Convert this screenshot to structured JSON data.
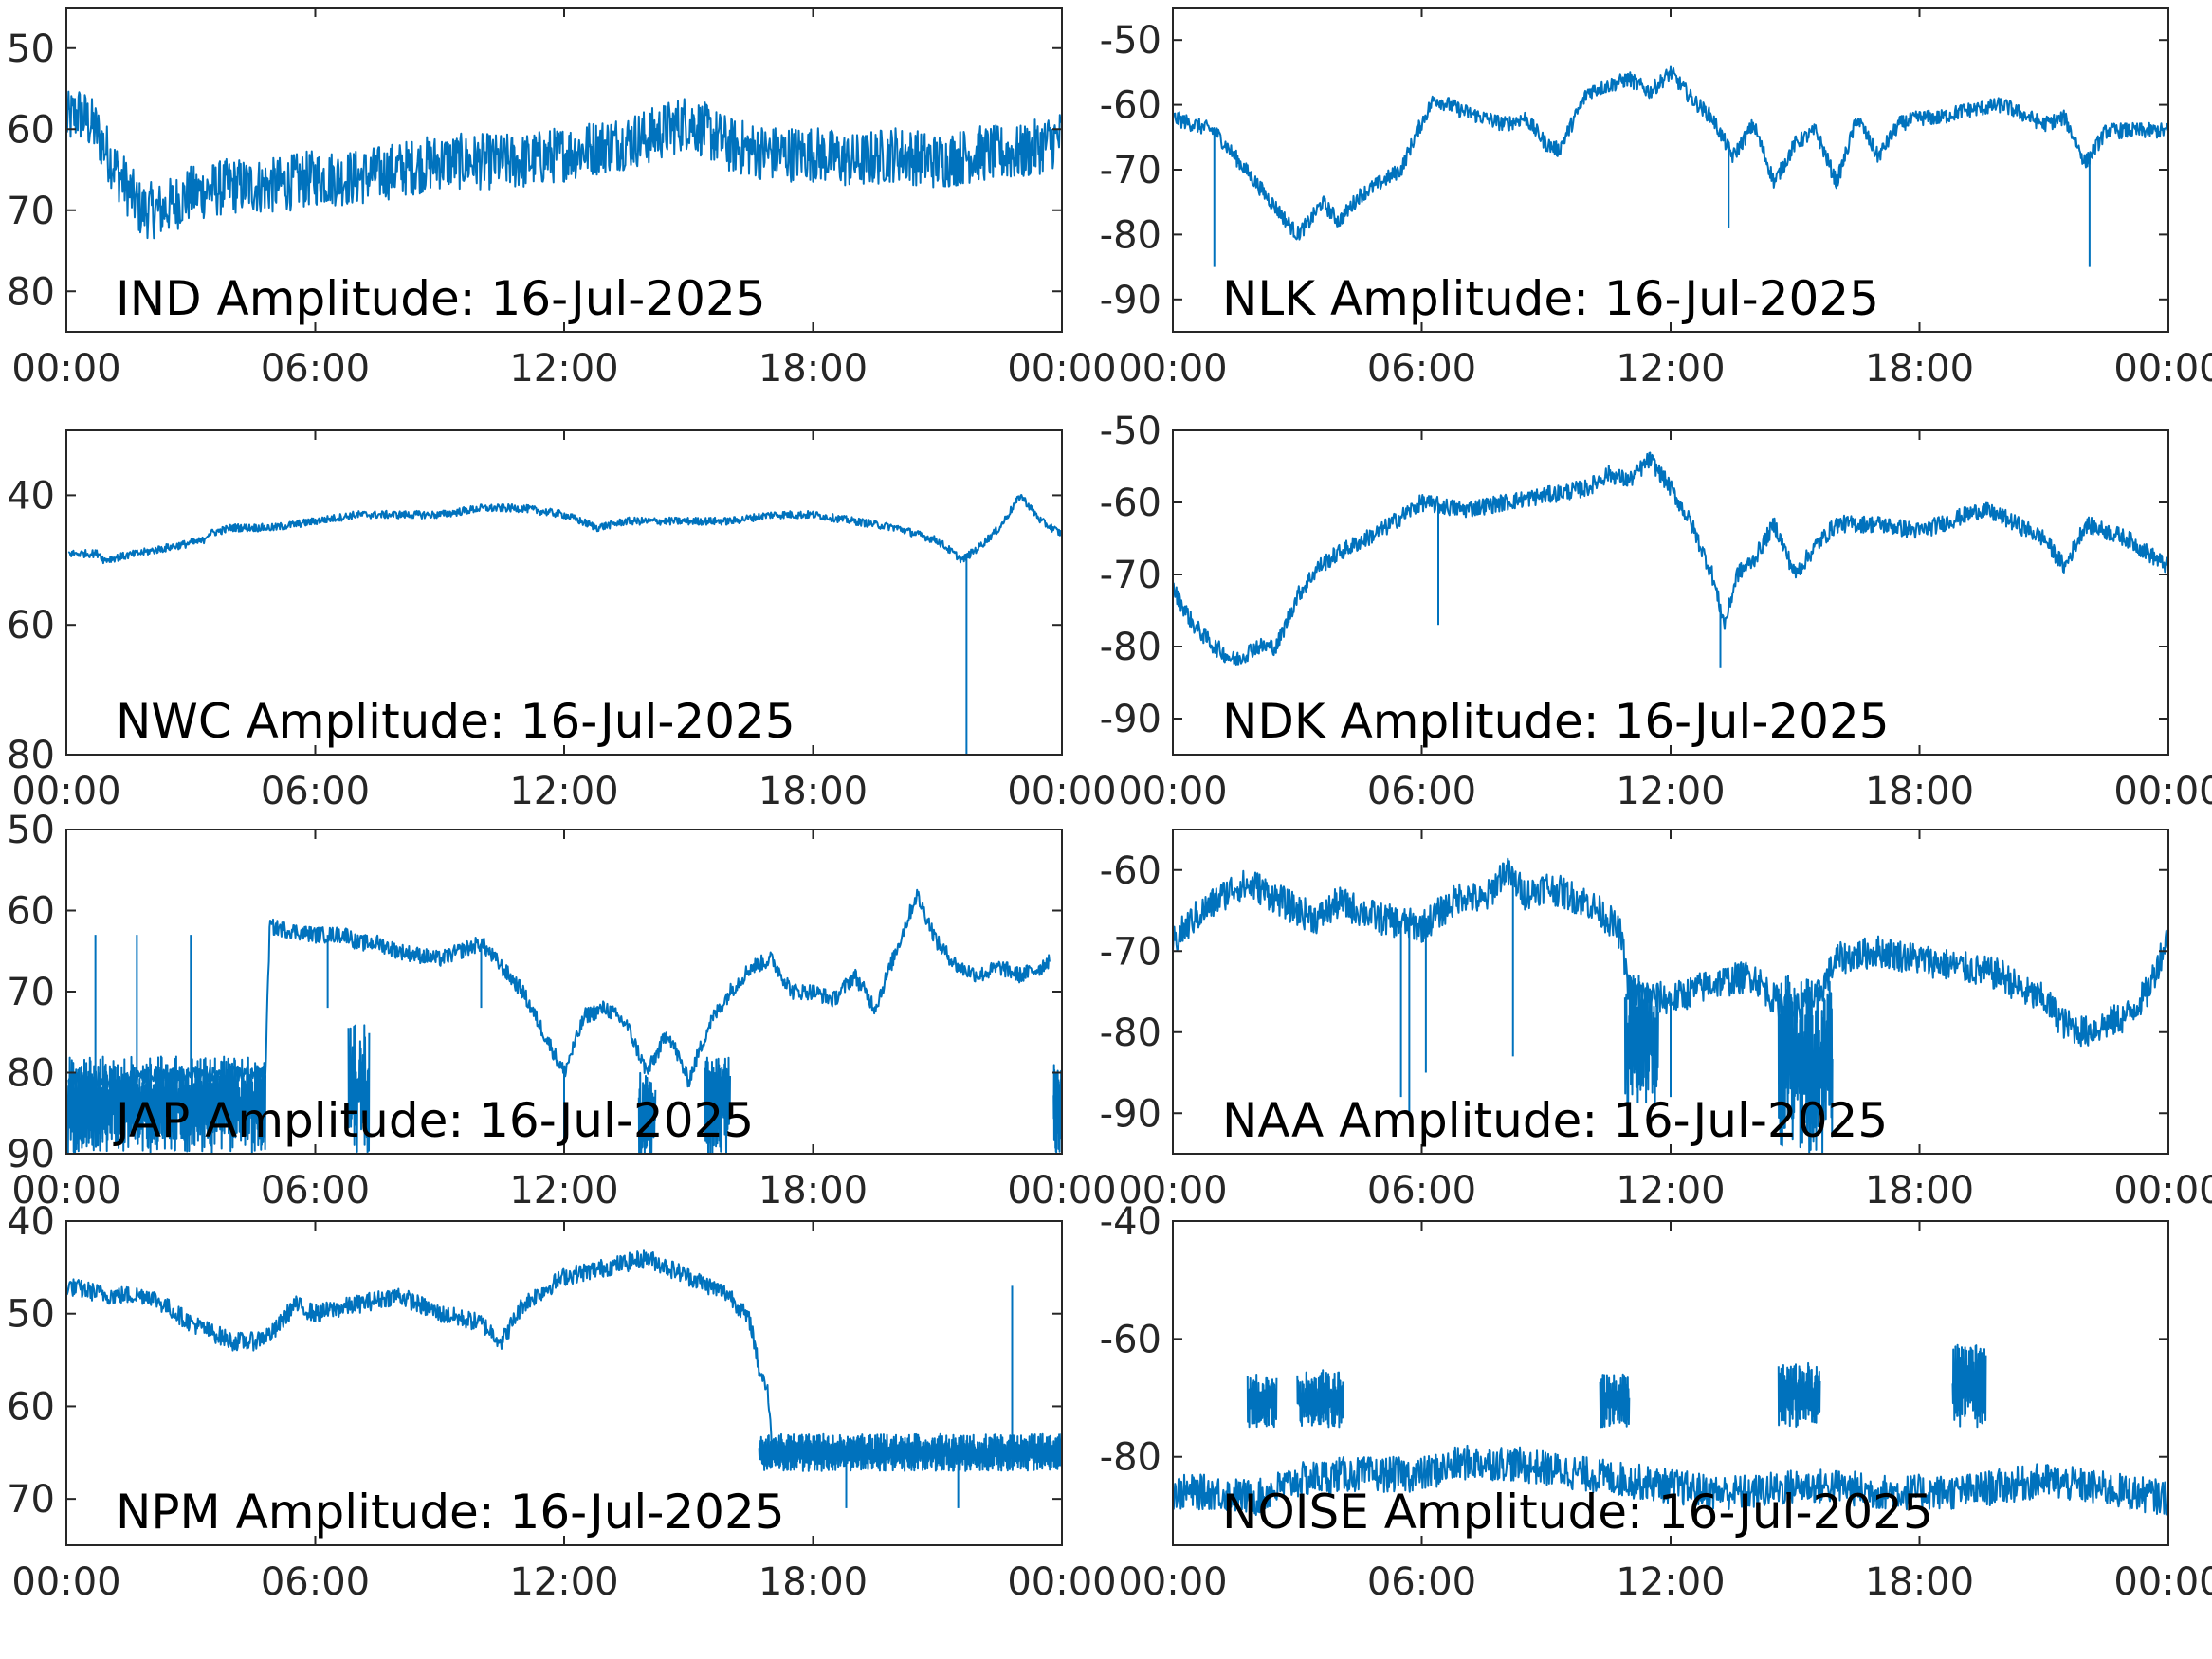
{
  "accent_color": "#0072BD",
  "x_tick_labels": [
    "00:00",
    "06:00",
    "12:00",
    "18:00",
    "00:00"
  ],
  "chart_data": [
    {
      "type": "line",
      "title": "IND Amplitude: 16-Jul-2025",
      "x_unit": "hours",
      "xlim": [
        0,
        24
      ],
      "xticks": [
        "00:00",
        "06:00",
        "12:00",
        "18:00",
        "00:00"
      ],
      "ylim": [
        -85,
        -45
      ],
      "yticks": [
        -50,
        -60,
        -70,
        -80
      ],
      "ytick_labels": [
        "50",
        "60",
        "70",
        "80"
      ],
      "noise_band": 3.5,
      "series": [
        {
          "x": [
            0,
            0.3,
            0.7,
            1.2,
            1.8,
            2.3,
            3,
            4,
            5,
            6,
            7,
            8,
            9,
            10,
            11,
            12,
            13,
            14,
            15,
            16,
            17,
            18,
            19,
            20,
            21,
            22,
            23,
            24
          ],
          "y": [
            -59,
            -58,
            -60,
            -65,
            -70,
            -70,
            -68,
            -67,
            -67,
            -66,
            -66,
            -65,
            -64,
            -64,
            -64,
            -63,
            -62,
            -61,
            -59,
            -62,
            -63,
            -63,
            -64,
            -63,
            -64,
            -63,
            -63,
            -61
          ]
        }
      ]
    },
    {
      "type": "line",
      "title": "NLK Amplitude: 16-Jul-2025",
      "x_unit": "hours",
      "xlim": [
        0,
        24
      ],
      "xticks": [
        "00:00",
        "06:00",
        "12:00",
        "18:00",
        "00:00"
      ],
      "ylim": [
        -95,
        -45
      ],
      "yticks": [
        -50,
        -60,
        -70,
        -80,
        -90
      ],
      "ytick_labels": [
        "-50",
        "-60",
        "-70",
        "-80",
        "-90"
      ],
      "noise_band": 1.2,
      "series": [
        {
          "x": [
            0,
            0.5,
            1,
            1.5,
            2,
            2.5,
            3,
            3.3,
            3.6,
            4,
            4.5,
            5,
            5.5,
            5.9,
            6.3,
            7,
            8,
            8.5,
            9,
            9.3,
            10,
            11,
            11.5,
            12,
            12.5,
            13,
            13.5,
            14,
            14.5,
            15,
            15.5,
            16,
            16.5,
            17,
            17.5,
            18,
            18.5,
            19,
            20,
            21,
            21.5,
            22,
            22.5,
            23,
            24
          ],
          "y": [
            -62,
            -63,
            -64,
            -68,
            -72,
            -76,
            -80,
            -78,
            -75,
            -78,
            -74,
            -72,
            -70,
            -64,
            -59,
            -61,
            -63,
            -62,
            -66,
            -67,
            -58,
            -56,
            -58,
            -55,
            -59,
            -62,
            -68,
            -63,
            -72,
            -66,
            -64,
            -72,
            -62,
            -68,
            -63,
            -62,
            -62,
            -61,
            -60,
            -63,
            -62,
            -69,
            -64,
            -64,
            -64
          ]
        }
      ],
      "spikes": [
        {
          "x": 1,
          "y": -85
        },
        {
          "x": 13.4,
          "y": -79
        },
        {
          "x": 22.1,
          "y": -85
        }
      ]
    },
    {
      "type": "line",
      "title": "NWC Amplitude: 16-Jul-2025",
      "x_unit": "hours",
      "xlim": [
        0,
        24
      ],
      "xticks": [
        "00:00",
        "06:00",
        "12:00",
        "18:00",
        "00:00"
      ],
      "ylim": [
        -80,
        -30
      ],
      "yticks": [
        -40,
        -60,
        -80
      ],
      "ytick_labels": [
        "40",
        "60",
        "80"
      ],
      "noise_band": 0.6,
      "series": [
        {
          "x": [
            0.05,
            0.8,
            0.9,
            3.3,
            3.4,
            4,
            5,
            6,
            7,
            8,
            9,
            10,
            11,
            12,
            12.8,
            13.5,
            15,
            16,
            17,
            18,
            19,
            20,
            21,
            21.6,
            22,
            22.5,
            23,
            23.5,
            24
          ],
          "y": [
            -49,
            -49,
            -50,
            -47,
            -46,
            -45,
            -45,
            -44,
            -43,
            -43,
            -43,
            -42,
            -42,
            -43,
            -45,
            -44,
            -44,
            -44,
            -43,
            -43,
            -44,
            -45,
            -47,
            -50,
            -48,
            -45,
            -40,
            -44,
            -46
          ]
        }
      ],
      "spikes": [
        {
          "x": 21.7,
          "y": -80
        }
      ]
    },
    {
      "type": "line",
      "title": "NDK Amplitude: 16-Jul-2025",
      "x_unit": "hours",
      "xlim": [
        0,
        24
      ],
      "xticks": [
        "00:00",
        "06:00",
        "12:00",
        "18:00",
        "00:00"
      ],
      "ylim": [
        -95,
        -50
      ],
      "yticks": [
        -50,
        -60,
        -70,
        -80,
        -90
      ],
      "ytick_labels": [
        "-50",
        "-60",
        "-70",
        "-80",
        "-90"
      ],
      "noise_band": 1.2,
      "series": [
        {
          "x": [
            0,
            0.5,
            1,
            1.5,
            2,
            2.5,
            3,
            3.5,
            4,
            5,
            5.5,
            6,
            7,
            8,
            9,
            10,
            10.5,
            11,
            11.5,
            12,
            12.5,
            13,
            13.3,
            13.6,
            14,
            14.5,
            15,
            15.5,
            16,
            17,
            18,
            19,
            19.5,
            20,
            21,
            21.5,
            22,
            23,
            24
          ],
          "y": [
            -72,
            -77,
            -80,
            -82,
            -80,
            -80,
            -73,
            -69,
            -67,
            -64,
            -62,
            -60,
            -61,
            -60,
            -59,
            -58,
            -56,
            -57,
            -54,
            -58,
            -63,
            -70,
            -77,
            -70,
            -68,
            -63,
            -70,
            -66,
            -63,
            -63,
            -64,
            -62,
            -61,
            -62,
            -65,
            -69,
            -63,
            -65,
            -69
          ]
        }
      ],
      "spikes": [
        {
          "x": 6.4,
          "y": -77
        },
        {
          "x": 13.2,
          "y": -83
        }
      ]
    },
    {
      "type": "line",
      "title": "JAP Amplitude: 16-Jul-2025",
      "x_unit": "hours",
      "xlim": [
        0,
        24
      ],
      "xticks": [
        "00:00",
        "06:00",
        "12:00",
        "18:00",
        "00:00"
      ],
      "ylim": [
        -90,
        -50
      ],
      "yticks": [
        -50,
        -60,
        -70,
        -80,
        -90
      ],
      "ytick_labels": [
        "50",
        "60",
        "70",
        "80",
        "90"
      ],
      "noise_band": 1.0,
      "series": [
        {
          "x": [
            0.05,
            4.8,
            4.9,
            6,
            6.8,
            7,
            7.5,
            8,
            9,
            9.5,
            10,
            11,
            11.5,
            12,
            12.5,
            13,
            13.5,
            14,
            14.5,
            15,
            15.5,
            16,
            16.5,
            17,
            17.5,
            18,
            18.5,
            19,
            19.5,
            20,
            20.5,
            21,
            21.5,
            22,
            22.5,
            23,
            23.5,
            23.7
          ],
          "y": [
            -81,
            -80,
            -62,
            -63,
            -63,
            -64,
            -64,
            -65,
            -66,
            -65,
            -64,
            -70,
            -75,
            -80,
            -73,
            -72,
            -74,
            -80,
            -75,
            -81,
            -74,
            -70,
            -67,
            -66,
            -70,
            -70,
            -71,
            -68,
            -72,
            -65,
            -58,
            -64,
            -67,
            -68,
            -67,
            -68,
            -67,
            -66
          ]
        }
      ],
      "bands": [
        {
          "x0": 0,
          "x1": 4.8,
          "ylo": -90,
          "yhi": -78
        },
        {
          "x0": 6.8,
          "x1": 7.3,
          "ylo": -90,
          "yhi": -74
        },
        {
          "x0": 13.8,
          "x1": 14.2,
          "ylo": -90,
          "yhi": -80
        },
        {
          "x0": 15.4,
          "x1": 16.0,
          "ylo": -90,
          "yhi": -78
        },
        {
          "x0": 23.8,
          "x1": 24,
          "ylo": -90,
          "yhi": -79
        }
      ],
      "spikes": [
        {
          "x": 0.7,
          "y": -63
        },
        {
          "x": 1.7,
          "y": -63
        },
        {
          "x": 3.0,
          "y": -63
        },
        {
          "x": 6.3,
          "y": -72
        },
        {
          "x": 10.0,
          "y": -72
        },
        {
          "x": 12.0,
          "y": -90
        }
      ]
    },
    {
      "type": "line",
      "title": "NAA Amplitude: 16-Jul-2025",
      "x_unit": "hours",
      "xlim": [
        0,
        24
      ],
      "xticks": [
        "00:00",
        "06:00",
        "12:00",
        "18:00",
        "00:00"
      ],
      "ylim": [
        -95,
        -55
      ],
      "yticks": [
        -60,
        -70,
        -80,
        -90
      ],
      "ytick_labels": [
        "-60",
        "-70",
        "-80",
        "-90"
      ],
      "noise_band": 2.0,
      "series": [
        {
          "x": [
            0,
            0.5,
            1,
            1.5,
            2,
            3,
            3.5,
            4,
            5,
            6,
            6.5,
            7,
            7.5,
            8,
            8.5,
            9,
            9.5,
            10,
            10.5,
            10.8,
            11,
            12,
            13,
            14,
            14.5,
            15,
            15.5,
            16,
            17,
            18,
            19,
            20,
            20.5,
            21,
            21.5,
            22,
            23,
            23.5,
            24
          ],
          "y": [
            -69,
            -66,
            -64,
            -62,
            -62,
            -65,
            -66,
            -64,
            -66,
            -67,
            -65,
            -63,
            -64,
            -60,
            -63,
            -62,
            -63,
            -64,
            -66,
            -68,
            -75,
            -76,
            -74,
            -73,
            -76,
            -77,
            -76,
            -71,
            -70,
            -71,
            -72,
            -73,
            -75,
            -76,
            -79,
            -80,
            -78,
            -75,
            -68
          ]
        }
      ],
      "bands": [
        {
          "x0": 14.6,
          "x1": 15.9,
          "ylo": -95,
          "yhi": -73
        },
        {
          "x0": 10.9,
          "x1": 11.7,
          "ylo": -89,
          "yhi": -73
        }
      ],
      "spikes": [
        {
          "x": 5.5,
          "y": -88
        },
        {
          "x": 5.7,
          "y": -90
        },
        {
          "x": 6.1,
          "y": -85
        },
        {
          "x": 8.2,
          "y": -83
        },
        {
          "x": 12.0,
          "y": -88
        }
      ]
    },
    {
      "type": "line",
      "title": "NPM Amplitude: 16-Jul-2025",
      "x_unit": "hours",
      "xlim": [
        0,
        24
      ],
      "xticks": [
        "00:00",
        "06:00",
        "12:00",
        "18:00",
        "00:00"
      ],
      "ylim": [
        -75,
        -40
      ],
      "yticks": [
        -40,
        -50,
        -60,
        -70
      ],
      "ytick_labels": [
        "40",
        "50",
        "60",
        "70"
      ],
      "noise_band": 1.0,
      "series": [
        {
          "x": [
            0,
            1,
            2,
            3,
            4,
            4.5,
            5,
            5.5,
            6,
            7,
            8,
            9,
            10,
            10.5,
            11,
            12,
            13,
            14,
            14.5,
            15,
            16,
            16.5,
            16.7,
            16.9,
            17,
            18,
            19,
            20,
            21,
            22,
            23,
            24
          ],
          "y": [
            -47,
            -48,
            -48,
            -51,
            -53,
            -53,
            -52,
            -49,
            -50,
            -49,
            -48,
            -50,
            -51,
            -53,
            -49,
            -46,
            -45,
            -44,
            -45,
            -46,
            -48,
            -51,
            -56,
            -58,
            -64,
            -65,
            -65,
            -65,
            -65,
            -65,
            -65,
            -65
          ]
        }
      ],
      "bands": [
        {
          "x0": 16.7,
          "x1": 24,
          "ylo": -67,
          "yhi": -63
        }
      ],
      "spikes": [
        {
          "x": 22.8,
          "y": -47
        },
        {
          "x": 18.8,
          "y": -71
        },
        {
          "x": 21.5,
          "y": -71
        }
      ]
    },
    {
      "type": "line",
      "title": "NOISE Amplitude: 16-Jul-2025",
      "x_unit": "hours",
      "xlim": [
        0,
        24
      ],
      "xticks": [
        "00:00",
        "06:00",
        "12:00",
        "18:00",
        "00:00"
      ],
      "ylim": [
        -95,
        -40
      ],
      "yticks": [
        -40,
        -60,
        -80
      ],
      "ytick_labels": [
        "-40",
        "-60",
        "-80"
      ],
      "noise_band": 3.0,
      "series": [
        {
          "x": [
            0,
            1,
            2,
            3,
            4,
            5,
            6,
            7,
            8,
            9,
            10,
            11,
            12,
            13,
            14,
            15,
            16,
            17,
            18,
            19,
            20,
            21,
            22,
            23,
            24
          ],
          "y": [
            -86,
            -86,
            -87,
            -84,
            -83,
            -83,
            -83,
            -81,
            -81,
            -82,
            -83,
            -84,
            -85,
            -86,
            -86,
            -85,
            -85,
            -86,
            -86,
            -86,
            -85,
            -84,
            -85,
            -86,
            -87
          ]
        }
      ],
      "bands": [
        {
          "x0": 1.8,
          "x1": 2.5,
          "ylo": -75,
          "yhi": -66
        },
        {
          "x0": 3.0,
          "x1": 4.1,
          "ylo": -75,
          "yhi": -65
        },
        {
          "x0": 10.3,
          "x1": 11.0,
          "ylo": -75,
          "yhi": -66
        },
        {
          "x0": 14.6,
          "x1": 15.6,
          "ylo": -75,
          "yhi": -64
        },
        {
          "x0": 18.8,
          "x1": 19.6,
          "ylo": -75,
          "yhi": -61
        }
      ]
    }
  ]
}
